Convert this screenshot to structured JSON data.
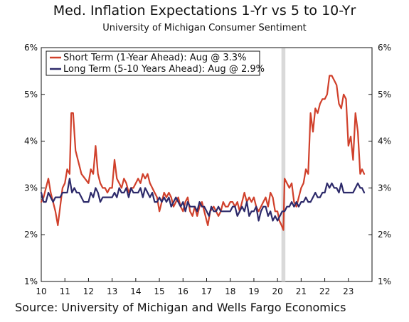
{
  "chart_data": {
    "type": "line",
    "title": "Med. Inflation Expectations 1-Yr vs 5 to 10-Yr",
    "subtitle": "University of Michigan Consumer Sentiment",
    "source": "Source: University of Michigan and Wells Fargo Economics",
    "x_tick_labels": [
      "10",
      "11",
      "12",
      "13",
      "14",
      "15",
      "16",
      "17",
      "18",
      "19",
      "20",
      "21",
      "22",
      "23"
    ],
    "y_tick_labels": [
      "1%",
      "2%",
      "3%",
      "4%",
      "5%",
      "6%"
    ],
    "ylim": [
      1,
      6
    ],
    "xlim": [
      2010.0,
      2024.0
    ],
    "shaded_period": [
      2020.167,
      2020.333
    ],
    "legend_position": "top-left",
    "series": [
      {
        "name": "Short Term (1-Year Ahead): Aug @ 3.3%",
        "color": "#d0402b",
        "points": [
          [
            2010.0,
            2.7
          ],
          [
            2010.1,
            2.8
          ],
          [
            2010.2,
            3.0
          ],
          [
            2010.3,
            3.2
          ],
          [
            2010.4,
            2.9
          ],
          [
            2010.5,
            2.7
          ],
          [
            2010.6,
            2.5
          ],
          [
            2010.7,
            2.2
          ],
          [
            2010.8,
            2.6
          ],
          [
            2010.9,
            3.0
          ],
          [
            2011.0,
            3.1
          ],
          [
            2011.1,
            3.4
          ],
          [
            2011.2,
            3.3
          ],
          [
            2011.27,
            4.6
          ],
          [
            2011.35,
            4.6
          ],
          [
            2011.45,
            3.8
          ],
          [
            2011.55,
            3.6
          ],
          [
            2011.7,
            3.3
          ],
          [
            2011.85,
            3.2
          ],
          [
            2012.0,
            3.1
          ],
          [
            2012.1,
            3.4
          ],
          [
            2012.2,
            3.3
          ],
          [
            2012.3,
            3.9
          ],
          [
            2012.4,
            3.3
          ],
          [
            2012.5,
            3.1
          ],
          [
            2012.6,
            3.0
          ],
          [
            2012.7,
            3.0
          ],
          [
            2012.8,
            2.9
          ],
          [
            2012.9,
            3.0
          ],
          [
            2013.0,
            3.0
          ],
          [
            2013.1,
            3.6
          ],
          [
            2013.2,
            3.2
          ],
          [
            2013.3,
            3.1
          ],
          [
            2013.4,
            3.0
          ],
          [
            2013.5,
            3.2
          ],
          [
            2013.6,
            3.1
          ],
          [
            2013.7,
            2.9
          ],
          [
            2013.8,
            3.0
          ],
          [
            2013.9,
            3.0
          ],
          [
            2014.0,
            3.1
          ],
          [
            2014.1,
            3.2
          ],
          [
            2014.2,
            3.1
          ],
          [
            2014.3,
            3.3
          ],
          [
            2014.4,
            3.2
          ],
          [
            2014.5,
            3.3
          ],
          [
            2014.6,
            3.1
          ],
          [
            2014.7,
            3.0
          ],
          [
            2014.8,
            2.9
          ],
          [
            2014.9,
            2.8
          ],
          [
            2015.0,
            2.5
          ],
          [
            2015.1,
            2.7
          ],
          [
            2015.2,
            2.9
          ],
          [
            2015.3,
            2.8
          ],
          [
            2015.4,
            2.9
          ],
          [
            2015.5,
            2.8
          ],
          [
            2015.6,
            2.6
          ],
          [
            2015.7,
            2.7
          ],
          [
            2015.8,
            2.8
          ],
          [
            2015.9,
            2.6
          ],
          [
            2016.0,
            2.5
          ],
          [
            2016.1,
            2.7
          ],
          [
            2016.2,
            2.8
          ],
          [
            2016.3,
            2.5
          ],
          [
            2016.4,
            2.4
          ],
          [
            2016.5,
            2.6
          ],
          [
            2016.6,
            2.4
          ],
          [
            2016.7,
            2.6
          ],
          [
            2016.8,
            2.7
          ],
          [
            2016.9,
            2.5
          ],
          [
            2017.0,
            2.3
          ],
          [
            2017.05,
            2.2
          ],
          [
            2017.15,
            2.5
          ],
          [
            2017.3,
            2.6
          ],
          [
            2017.4,
            2.5
          ],
          [
            2017.5,
            2.4
          ],
          [
            2017.6,
            2.5
          ],
          [
            2017.7,
            2.7
          ],
          [
            2017.8,
            2.6
          ],
          [
            2017.9,
            2.6
          ],
          [
            2018.0,
            2.7
          ],
          [
            2018.1,
            2.7
          ],
          [
            2018.2,
            2.6
          ],
          [
            2018.3,
            2.7
          ],
          [
            2018.4,
            2.5
          ],
          [
            2018.5,
            2.7
          ],
          [
            2018.6,
            2.9
          ],
          [
            2018.7,
            2.7
          ],
          [
            2018.8,
            2.8
          ],
          [
            2018.9,
            2.7
          ],
          [
            2019.0,
            2.8
          ],
          [
            2019.1,
            2.6
          ],
          [
            2019.2,
            2.5
          ],
          [
            2019.3,
            2.6
          ],
          [
            2019.4,
            2.7
          ],
          [
            2019.5,
            2.8
          ],
          [
            2019.6,
            2.6
          ],
          [
            2019.7,
            2.9
          ],
          [
            2019.8,
            2.8
          ],
          [
            2019.9,
            2.5
          ],
          [
            2020.0,
            2.5
          ],
          [
            2020.08,
            2.3
          ],
          [
            2020.17,
            2.2
          ],
          [
            2020.25,
            2.1
          ],
          [
            2020.3,
            3.2
          ],
          [
            2020.4,
            3.1
          ],
          [
            2020.5,
            3.0
          ],
          [
            2020.6,
            3.1
          ],
          [
            2020.7,
            2.7
          ],
          [
            2020.8,
            2.6
          ],
          [
            2020.9,
            2.8
          ],
          [
            2021.0,
            3.0
          ],
          [
            2021.1,
            3.1
          ],
          [
            2021.2,
            3.4
          ],
          [
            2021.3,
            3.3
          ],
          [
            2021.4,
            4.6
          ],
          [
            2021.5,
            4.2
          ],
          [
            2021.6,
            4.7
          ],
          [
            2021.7,
            4.6
          ],
          [
            2021.8,
            4.8
          ],
          [
            2021.9,
            4.9
          ],
          [
            2022.0,
            4.9
          ],
          [
            2022.1,
            5.0
          ],
          [
            2022.2,
            5.4
          ],
          [
            2022.3,
            5.4
          ],
          [
            2022.4,
            5.3
          ],
          [
            2022.5,
            5.2
          ],
          [
            2022.6,
            4.8
          ],
          [
            2022.7,
            4.7
          ],
          [
            2022.8,
            5.0
          ],
          [
            2022.9,
            4.9
          ],
          [
            2023.0,
            3.9
          ],
          [
            2023.1,
            4.1
          ],
          [
            2023.2,
            3.6
          ],
          [
            2023.3,
            4.6
          ],
          [
            2023.4,
            4.2
          ],
          [
            2023.5,
            3.3
          ],
          [
            2023.58,
            3.4
          ],
          [
            2023.67,
            3.3
          ]
        ]
      },
      {
        "name": "Long Term (5-10 Years Ahead): Aug @ 2.9%",
        "color": "#2d2a6a",
        "points": [
          [
            2010.0,
            2.9
          ],
          [
            2010.1,
            2.7
          ],
          [
            2010.2,
            2.7
          ],
          [
            2010.3,
            2.9
          ],
          [
            2010.4,
            2.8
          ],
          [
            2010.5,
            2.7
          ],
          [
            2010.6,
            2.8
          ],
          [
            2010.7,
            2.8
          ],
          [
            2010.8,
            2.8
          ],
          [
            2010.9,
            2.9
          ],
          [
            2011.0,
            2.9
          ],
          [
            2011.1,
            2.9
          ],
          [
            2011.2,
            3.2
          ],
          [
            2011.3,
            2.9
          ],
          [
            2011.4,
            3.0
          ],
          [
            2011.5,
            2.9
          ],
          [
            2011.6,
            2.9
          ],
          [
            2011.7,
            2.8
          ],
          [
            2011.8,
            2.7
          ],
          [
            2011.9,
            2.7
          ],
          [
            2012.0,
            2.7
          ],
          [
            2012.1,
            2.9
          ],
          [
            2012.2,
            2.8
          ],
          [
            2012.3,
            3.0
          ],
          [
            2012.4,
            2.9
          ],
          [
            2012.5,
            2.7
          ],
          [
            2012.6,
            2.8
          ],
          [
            2012.7,
            2.8
          ],
          [
            2012.8,
            2.8
          ],
          [
            2012.9,
            2.8
          ],
          [
            2013.0,
            2.8
          ],
          [
            2013.1,
            2.9
          ],
          [
            2013.2,
            2.8
          ],
          [
            2013.3,
            3.0
          ],
          [
            2013.4,
            2.9
          ],
          [
            2013.5,
            2.9
          ],
          [
            2013.6,
            3.0
          ],
          [
            2013.7,
            2.8
          ],
          [
            2013.8,
            3.0
          ],
          [
            2013.9,
            2.9
          ],
          [
            2014.0,
            2.9
          ],
          [
            2014.1,
            2.9
          ],
          [
            2014.2,
            3.0
          ],
          [
            2014.3,
            2.8
          ],
          [
            2014.4,
            3.0
          ],
          [
            2014.5,
            2.9
          ],
          [
            2014.6,
            2.8
          ],
          [
            2014.7,
            2.9
          ],
          [
            2014.8,
            2.7
          ],
          [
            2014.9,
            2.7
          ],
          [
            2015.0,
            2.8
          ],
          [
            2015.1,
            2.7
          ],
          [
            2015.2,
            2.8
          ],
          [
            2015.3,
            2.7
          ],
          [
            2015.4,
            2.8
          ],
          [
            2015.5,
            2.6
          ],
          [
            2015.6,
            2.7
          ],
          [
            2015.7,
            2.8
          ],
          [
            2015.8,
            2.7
          ],
          [
            2015.9,
            2.6
          ],
          [
            2016.0,
            2.7
          ],
          [
            2016.1,
            2.5
          ],
          [
            2016.2,
            2.7
          ],
          [
            2016.3,
            2.6
          ],
          [
            2016.4,
            2.6
          ],
          [
            2016.5,
            2.6
          ],
          [
            2016.6,
            2.5
          ],
          [
            2016.7,
            2.7
          ],
          [
            2016.8,
            2.6
          ],
          [
            2016.9,
            2.6
          ],
          [
            2017.0,
            2.5
          ],
          [
            2017.1,
            2.4
          ],
          [
            2017.2,
            2.6
          ],
          [
            2017.3,
            2.5
          ],
          [
            2017.4,
            2.5
          ],
          [
            2017.5,
            2.6
          ],
          [
            2017.6,
            2.5
          ],
          [
            2017.7,
            2.5
          ],
          [
            2017.8,
            2.5
          ],
          [
            2017.9,
            2.5
          ],
          [
            2018.0,
            2.5
          ],
          [
            2018.1,
            2.6
          ],
          [
            2018.2,
            2.6
          ],
          [
            2018.3,
            2.4
          ],
          [
            2018.4,
            2.5
          ],
          [
            2018.5,
            2.6
          ],
          [
            2018.6,
            2.5
          ],
          [
            2018.7,
            2.7
          ],
          [
            2018.8,
            2.4
          ],
          [
            2018.9,
            2.5
          ],
          [
            2019.0,
            2.5
          ],
          [
            2019.1,
            2.6
          ],
          [
            2019.2,
            2.3
          ],
          [
            2019.3,
            2.5
          ],
          [
            2019.4,
            2.6
          ],
          [
            2019.5,
            2.6
          ],
          [
            2019.6,
            2.4
          ],
          [
            2019.7,
            2.5
          ],
          [
            2019.8,
            2.3
          ],
          [
            2019.9,
            2.4
          ],
          [
            2020.0,
            2.3
          ],
          [
            2020.1,
            2.4
          ],
          [
            2020.2,
            2.5
          ],
          [
            2020.3,
            2.5
          ],
          [
            2020.4,
            2.6
          ],
          [
            2020.5,
            2.6
          ],
          [
            2020.6,
            2.7
          ],
          [
            2020.7,
            2.6
          ],
          [
            2020.8,
            2.7
          ],
          [
            2020.9,
            2.6
          ],
          [
            2021.0,
            2.7
          ],
          [
            2021.1,
            2.7
          ],
          [
            2021.2,
            2.8
          ],
          [
            2021.3,
            2.7
          ],
          [
            2021.4,
            2.7
          ],
          [
            2021.5,
            2.8
          ],
          [
            2021.6,
            2.9
          ],
          [
            2021.7,
            2.8
          ],
          [
            2021.8,
            2.8
          ],
          [
            2021.9,
            2.9
          ],
          [
            2022.0,
            2.9
          ],
          [
            2022.1,
            3.1
          ],
          [
            2022.2,
            3.0
          ],
          [
            2022.3,
            3.1
          ],
          [
            2022.4,
            3.0
          ],
          [
            2022.5,
            3.0
          ],
          [
            2022.6,
            2.9
          ],
          [
            2022.7,
            3.1
          ],
          [
            2022.8,
            2.9
          ],
          [
            2022.9,
            2.9
          ],
          [
            2023.0,
            2.9
          ],
          [
            2023.1,
            2.9
          ],
          [
            2023.2,
            2.9
          ],
          [
            2023.3,
            3.0
          ],
          [
            2023.4,
            3.1
          ],
          [
            2023.5,
            3.0
          ],
          [
            2023.58,
            3.0
          ],
          [
            2023.67,
            2.9
          ]
        ]
      }
    ]
  }
}
